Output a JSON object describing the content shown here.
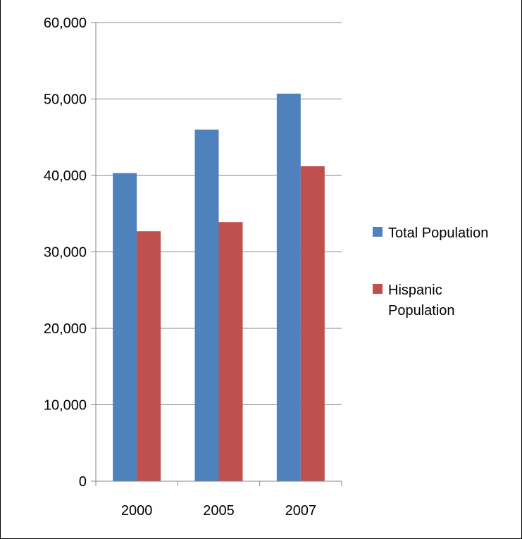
{
  "chart_data": {
    "type": "bar",
    "title": "",
    "categories": [
      "2000",
      "2005",
      "2007"
    ],
    "series": [
      {
        "name": "Total Population",
        "color": "#4f81bd",
        "values": [
          40300,
          46000,
          50700
        ]
      },
      {
        "name": "Hispanic Population",
        "color": "#c0504d",
        "values": [
          32700,
          33900,
          41200
        ]
      }
    ],
    "ylim": [
      0,
      60000
    ],
    "yticks": [
      0,
      10000,
      20000,
      30000,
      40000,
      50000,
      60000
    ],
    "ytick_labels": [
      "0",
      "10,000",
      "20,000",
      "30,000",
      "40,000",
      "50,000",
      "60,000"
    ],
    "xlabel": "",
    "ylabel": "",
    "grid": true,
    "legend": {
      "position": "right",
      "entries": [
        {
          "lines": [
            "Total Population"
          ]
        },
        {
          "lines": [
            "Hispanic",
            "Population"
          ]
        }
      ]
    }
  }
}
